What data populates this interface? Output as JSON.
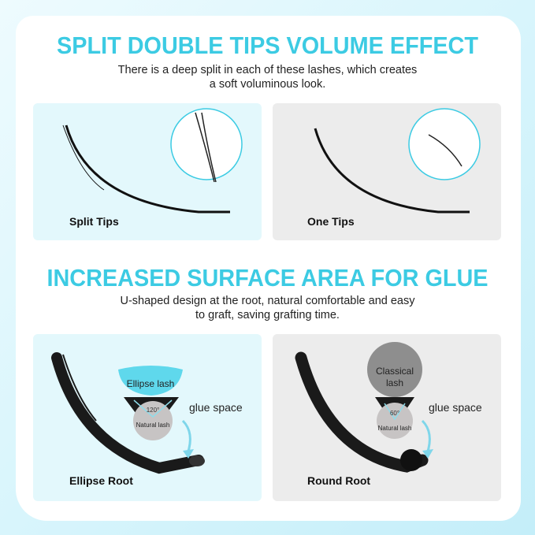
{
  "section1": {
    "title": "SPLIT DOUBLE TIPS VOLUME EFFECT",
    "description_line1": "There is a deep split in each of these lashes, which creates",
    "description_line2": "a soft voluminous look.",
    "panels": [
      {
        "label": "Split Tips"
      },
      {
        "label": "One Tips"
      }
    ]
  },
  "section2": {
    "title": "INCREASED SURFACE AREA FOR GLUE",
    "description_line1": "U-shaped design at the root, natural comfortable and easy",
    "description_line2": "to graft, saving grafting time.",
    "panels": [
      {
        "label": "Ellipse Root",
        "lash_label": "Ellipse lash",
        "angle": "120°",
        "natural_label": "Natural lash",
        "glue_label": "glue space"
      },
      {
        "label": "Round Root",
        "lash_label_line1": "Classical",
        "lash_label_line2": "lash",
        "angle": "60°",
        "natural_label": "Natural lash",
        "glue_label": "glue space"
      }
    ]
  },
  "colors": {
    "accent": "#3ccbe3",
    "panel_cyan": "#e3f8fc",
    "panel_gray": "#ececec"
  }
}
